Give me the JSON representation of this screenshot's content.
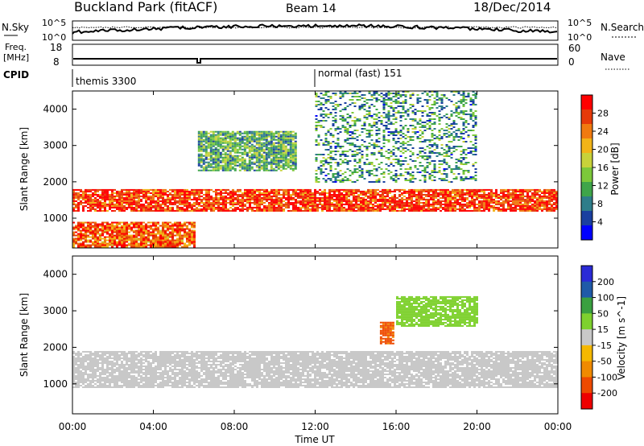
{
  "header": {
    "station": "Buckland Park (fitACF)",
    "beam": "Beam 14",
    "date": "18/Dec/2014"
  },
  "noise_panel": {
    "left_label": "N.Sky",
    "right_label": "N.Search",
    "left_ticks": [
      "10^5",
      "10^0"
    ],
    "right_ticks": [
      "10^5",
      "10^0"
    ]
  },
  "freq_panel": {
    "left_label_line1": "Freq.",
    "left_label_line2": "[MHz]",
    "left_ticks": [
      "18",
      "8"
    ],
    "right_label": "Nave",
    "right_ticks": [
      "60",
      "0"
    ]
  },
  "cpid_panel": {
    "label": "CPID",
    "modes": [
      {
        "name": "themis 3300",
        "start": "00:00"
      },
      {
        "name": "normal (fast) 151",
        "start": "12:00"
      }
    ]
  },
  "x_axis": {
    "label": "Time UT",
    "ticks": [
      "00:00",
      "04:00",
      "08:00",
      "12:00",
      "16:00",
      "20:00",
      "00:00"
    ]
  },
  "chart_data": [
    {
      "type": "heatmap",
      "quantity": "Power",
      "ylabel": "Slant Range [km]",
      "yticks": [
        "1000",
        "2000",
        "3000",
        "4000"
      ],
      "ylim": [
        180,
        4500
      ],
      "xlim_hours": [
        0,
        24
      ],
      "colorbar_label": "Power [dB]",
      "colorbar_ticks": [
        "4",
        "8",
        "12",
        "16",
        "20",
        "24",
        "28"
      ],
      "colorbar_range": [
        0,
        32
      ],
      "colormap": [
        "#0000ff",
        "#1a3fa0",
        "#2e7d8a",
        "#3fa54a",
        "#7cc83a",
        "#c8d23a",
        "#f2b418",
        "#f07a10",
        "#e63a0a",
        "#ff0000"
      ],
      "features": [
        {
          "desc": "main echo band",
          "t_start": 0,
          "t_end": 24,
          "range_km": [
            1200,
            1800
          ],
          "power_db": 28
        },
        {
          "desc": "near-range echoes",
          "t_start": 0,
          "t_end": 6,
          "range_km": [
            200,
            900
          ],
          "power_db": 26
        },
        {
          "desc": "upper band",
          "t_start": 6.2,
          "t_end": 11,
          "range_km": [
            2300,
            3400
          ],
          "power_db": 12
        },
        {
          "desc": "scattered high-range echoes",
          "t_start": 12,
          "t_end": 20,
          "range_km": [
            2000,
            4500
          ],
          "power_db": 10
        }
      ]
    },
    {
      "type": "heatmap",
      "quantity": "Velocity",
      "ylabel": "Slant Range [km]",
      "yticks": [
        "1000",
        "2000",
        "3000",
        "4000"
      ],
      "ylim": [
        180,
        4500
      ],
      "xlim_hours": [
        0,
        24
      ],
      "colorbar_label": "Velocity [m s^-1]",
      "colorbar_ticks": [
        "200",
        "100",
        "50",
        "15",
        "-15",
        "-50",
        "-100",
        "-200"
      ],
      "colorbar_range": [
        -250,
        250
      ],
      "colormap": [
        "#2a2ad6",
        "#1f5aa8",
        "#3aa040",
        "#7ed12e",
        "#c8c8c8",
        "#f5b800",
        "#f08a00",
        "#ee4a00",
        "#ee0000"
      ],
      "features": [
        {
          "desc": "ground scatter (near-zero velocity)",
          "t_start": 0,
          "t_end": 24,
          "range_km": [
            900,
            1900
          ],
          "velocity": 0
        },
        {
          "desc": "positive-velocity arc",
          "t_start": 16,
          "t_end": 20,
          "range_km": [
            2600,
            3400
          ],
          "velocity": 60
        },
        {
          "desc": "negative-velocity patch",
          "t_start": 15.2,
          "t_end": 15.8,
          "range_km": [
            2100,
            2700
          ],
          "velocity": -150
        }
      ]
    }
  ]
}
